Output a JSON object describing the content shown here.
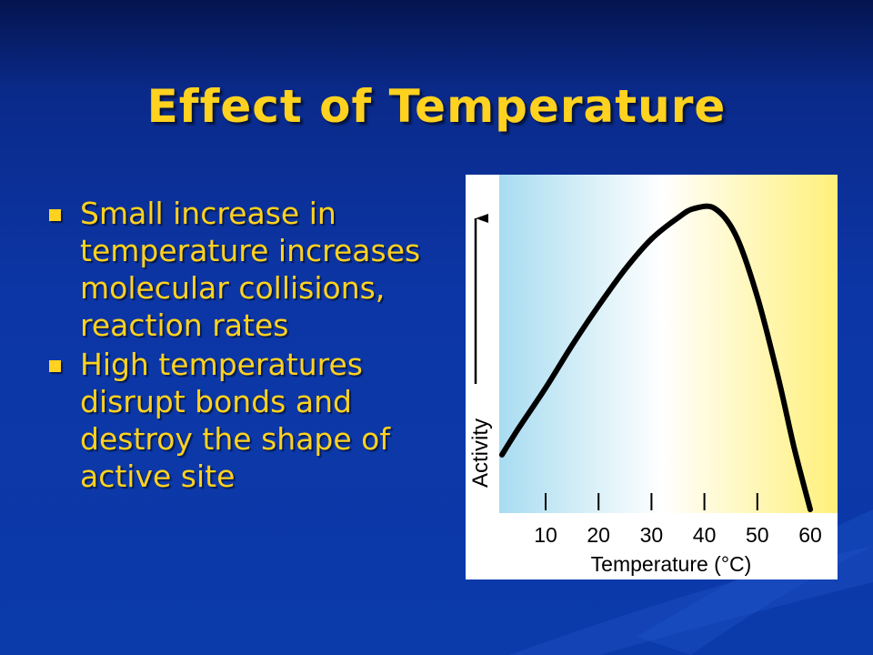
{
  "slide": {
    "title": "Effect of Temperature",
    "colors": {
      "background": "#0b3aaa",
      "text": "#ffd21f"
    },
    "bullets": [
      "Small increase in temperature increases molecular collisions, reaction rates",
      "High temperatures disrupt bonds and destroy the shape of active site"
    ]
  },
  "chart_data": {
    "type": "line",
    "title": "",
    "xlabel": "Temperature (°C)",
    "ylabel": "Activity",
    "x_ticks": [
      "10",
      "20",
      "30",
      "40",
      "50",
      "60"
    ],
    "xlim": [
      0,
      65
    ],
    "grid": false,
    "series": [
      {
        "x": [
          0,
          5,
          10,
          15,
          20,
          25,
          30,
          35,
          38,
          42,
          46,
          50,
          54,
          57,
          60
        ],
        "y": [
          0.18,
          0.27,
          0.4,
          0.54,
          0.67,
          0.79,
          0.89,
          0.96,
          0.99,
          0.99,
          0.9,
          0.7,
          0.43,
          0.2,
          0.0
        ]
      }
    ],
    "colors": {
      "line": "#000000",
      "background_left": "#a8dcf0",
      "background_right": "#fff07a"
    }
  }
}
